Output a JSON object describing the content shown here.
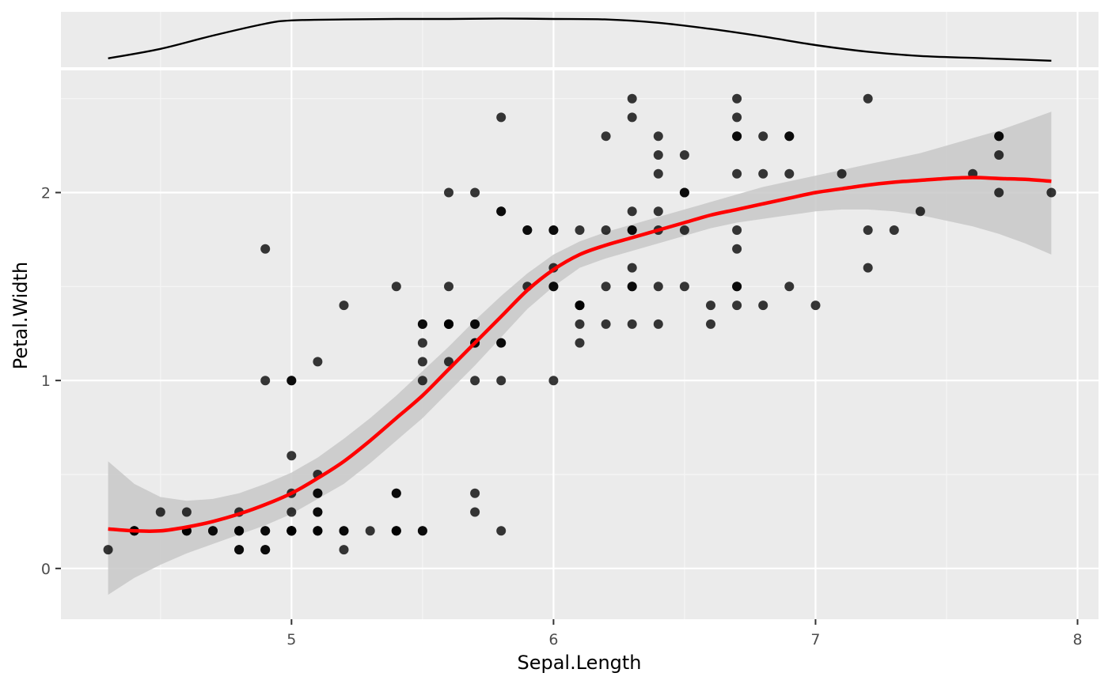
{
  "chart_data": {
    "type": "scatter",
    "title": "",
    "xlabel": "Sepal.Length",
    "ylabel": "Petal.Width",
    "xlim": [
      4.12,
      8.08
    ],
    "ylim": [
      -0.27,
      2.65
    ],
    "x_ticks": [
      5,
      6,
      7,
      8
    ],
    "x_tick_labels": [
      "5",
      "6",
      "7",
      "8"
    ],
    "y_ticks": [
      0,
      1,
      2
    ],
    "y_tick_labels": [
      "0",
      "1",
      "2"
    ],
    "grid": true,
    "legend": "none",
    "colors": {
      "panel_background": "#ebebeb",
      "grid_major": "#ffffff",
      "grid_minor": "#f5f5f5",
      "points": "#000000",
      "smooth_line": "#ff0000",
      "confidence_band": "#c8c8c8",
      "density_line": "#000000"
    },
    "points": [
      [
        4.3,
        0.1
      ],
      [
        4.4,
        0.2
      ],
      [
        4.4,
        0.2
      ],
      [
        4.4,
        0.2
      ],
      [
        4.5,
        0.3
      ],
      [
        4.6,
        0.2
      ],
      [
        4.6,
        0.3
      ],
      [
        4.6,
        0.2
      ],
      [
        4.6,
        0.2
      ],
      [
        4.7,
        0.2
      ],
      [
        4.7,
        0.2
      ],
      [
        4.8,
        0.2
      ],
      [
        4.8,
        0.1
      ],
      [
        4.8,
        0.3
      ],
      [
        4.8,
        0.2
      ],
      [
        4.8,
        0.2
      ],
      [
        4.8,
        0.1
      ],
      [
        4.9,
        0.1
      ],
      [
        4.9,
        0.2
      ],
      [
        4.9,
        0.1
      ],
      [
        4.9,
        0.2
      ],
      [
        4.9,
        1.0
      ],
      [
        4.9,
        1.7
      ],
      [
        5.0,
        0.2
      ],
      [
        5.0,
        0.2
      ],
      [
        5.0,
        0.4
      ],
      [
        5.0,
        0.2
      ],
      [
        5.0,
        0.2
      ],
      [
        5.0,
        0.6
      ],
      [
        5.0,
        0.3
      ],
      [
        5.0,
        0.2
      ],
      [
        5.0,
        1.0
      ],
      [
        5.0,
        1.0
      ],
      [
        5.0,
        0.2
      ],
      [
        5.1,
        0.2
      ],
      [
        5.1,
        0.4
      ],
      [
        5.1,
        0.3
      ],
      [
        5.1,
        0.3
      ],
      [
        5.1,
        0.2
      ],
      [
        5.1,
        0.4
      ],
      [
        5.1,
        0.5
      ],
      [
        5.1,
        0.2
      ],
      [
        5.1,
        1.1
      ],
      [
        5.2,
        0.2
      ],
      [
        5.2,
        0.1
      ],
      [
        5.2,
        0.2
      ],
      [
        5.2,
        1.4
      ],
      [
        5.3,
        0.2
      ],
      [
        5.4,
        0.2
      ],
      [
        5.4,
        0.4
      ],
      [
        5.4,
        0.2
      ],
      [
        5.4,
        0.4
      ],
      [
        5.4,
        0.2
      ],
      [
        5.4,
        1.5
      ],
      [
        5.5,
        0.2
      ],
      [
        5.5,
        0.2
      ],
      [
        5.5,
        1.3
      ],
      [
        5.5,
        1.1
      ],
      [
        5.5,
        1.0
      ],
      [
        5.5,
        1.2
      ],
      [
        5.5,
        1.3
      ],
      [
        5.6,
        1.3
      ],
      [
        5.6,
        1.5
      ],
      [
        5.6,
        1.1
      ],
      [
        5.6,
        1.3
      ],
      [
        5.6,
        1.3
      ],
      [
        5.6,
        2.0
      ],
      [
        5.7,
        0.4
      ],
      [
        5.7,
        0.3
      ],
      [
        5.7,
        1.3
      ],
      [
        5.7,
        1.0
      ],
      [
        5.7,
        1.2
      ],
      [
        5.7,
        1.2
      ],
      [
        5.7,
        1.3
      ],
      [
        5.7,
        2.0
      ],
      [
        5.8,
        0.2
      ],
      [
        5.8,
        1.0
      ],
      [
        5.8,
        1.2
      ],
      [
        5.8,
        1.2
      ],
      [
        5.8,
        1.9
      ],
      [
        5.8,
        2.4
      ],
      [
        5.8,
        1.9
      ],
      [
        5.9,
        1.5
      ],
      [
        5.9,
        1.8
      ],
      [
        5.9,
        1.8
      ],
      [
        6.0,
        1.0
      ],
      [
        6.0,
        1.6
      ],
      [
        6.0,
        1.5
      ],
      [
        6.0,
        1.8
      ],
      [
        6.0,
        1.5
      ],
      [
        6.0,
        1.8
      ],
      [
        6.1,
        1.4
      ],
      [
        6.1,
        1.2
      ],
      [
        6.1,
        1.4
      ],
      [
        6.1,
        1.3
      ],
      [
        6.1,
        1.8
      ],
      [
        6.1,
        1.4
      ],
      [
        6.2,
        1.3
      ],
      [
        6.2,
        1.5
      ],
      [
        6.2,
        1.8
      ],
      [
        6.2,
        2.3
      ],
      [
        6.3,
        1.6
      ],
      [
        6.3,
        1.5
      ],
      [
        6.3,
        1.3
      ],
      [
        6.3,
        1.9
      ],
      [
        6.3,
        1.8
      ],
      [
        6.3,
        1.8
      ],
      [
        6.3,
        2.5
      ],
      [
        6.3,
        2.4
      ],
      [
        6.3,
        1.5
      ],
      [
        6.4,
        1.5
      ],
      [
        6.4,
        1.3
      ],
      [
        6.4,
        1.9
      ],
      [
        6.4,
        1.8
      ],
      [
        6.4,
        2.1
      ],
      [
        6.4,
        2.2
      ],
      [
        6.4,
        2.3
      ],
      [
        6.5,
        1.5
      ],
      [
        6.5,
        2.0
      ],
      [
        6.5,
        1.8
      ],
      [
        6.5,
        2.2
      ],
      [
        6.5,
        2.0
      ],
      [
        6.6,
        1.3
      ],
      [
        6.6,
        1.4
      ],
      [
        6.7,
        1.4
      ],
      [
        6.7,
        1.5
      ],
      [
        6.7,
        1.7
      ],
      [
        6.7,
        1.5
      ],
      [
        6.7,
        2.5
      ],
      [
        6.7,
        1.8
      ],
      [
        6.7,
        2.1
      ],
      [
        6.7,
        2.4
      ],
      [
        6.7,
        2.3
      ],
      [
        6.7,
        2.3
      ],
      [
        6.8,
        1.4
      ],
      [
        6.8,
        2.1
      ],
      [
        6.8,
        2.3
      ],
      [
        6.9,
        1.5
      ],
      [
        6.9,
        2.3
      ],
      [
        6.9,
        2.1
      ],
      [
        6.9,
        2.3
      ],
      [
        7.0,
        1.4
      ],
      [
        7.1,
        2.1
      ],
      [
        7.2,
        1.8
      ],
      [
        7.2,
        1.6
      ],
      [
        7.2,
        2.5
      ],
      [
        7.3,
        1.8
      ],
      [
        7.4,
        1.9
      ],
      [
        7.6,
        2.1
      ],
      [
        7.7,
        2.2
      ],
      [
        7.7,
        2.3
      ],
      [
        7.7,
        2.0
      ],
      [
        7.7,
        2.3
      ],
      [
        7.9,
        2.0
      ]
    ],
    "smooth_fit": {
      "x": [
        4.3,
        4.4,
        4.5,
        4.6,
        4.7,
        4.8,
        4.9,
        5.0,
        5.1,
        5.2,
        5.3,
        5.4,
        5.5,
        5.6,
        5.7,
        5.8,
        5.9,
        6.0,
        6.1,
        6.2,
        6.3,
        6.4,
        6.5,
        6.6,
        6.7,
        6.8,
        6.9,
        7.0,
        7.1,
        7.2,
        7.3,
        7.4,
        7.5,
        7.6,
        7.7,
        7.8,
        7.9
      ],
      "y": [
        0.21,
        0.2,
        0.2,
        0.22,
        0.25,
        0.29,
        0.34,
        0.4,
        0.48,
        0.57,
        0.68,
        0.8,
        0.92,
        1.06,
        1.2,
        1.34,
        1.48,
        1.59,
        1.67,
        1.72,
        1.76,
        1.8,
        1.84,
        1.88,
        1.91,
        1.94,
        1.97,
        2.0,
        2.02,
        2.04,
        2.055,
        2.065,
        2.075,
        2.08,
        2.075,
        2.07,
        2.06
      ],
      "upper": [
        0.57,
        0.45,
        0.38,
        0.36,
        0.37,
        0.4,
        0.45,
        0.51,
        0.59,
        0.69,
        0.8,
        0.92,
        1.05,
        1.18,
        1.32,
        1.45,
        1.57,
        1.67,
        1.74,
        1.79,
        1.83,
        1.87,
        1.91,
        1.95,
        1.99,
        2.03,
        2.06,
        2.09,
        2.12,
        2.15,
        2.18,
        2.21,
        2.25,
        2.29,
        2.33,
        2.38,
        2.43
      ],
      "lower": [
        -0.14,
        -0.05,
        0.02,
        0.08,
        0.13,
        0.18,
        0.23,
        0.29,
        0.37,
        0.45,
        0.56,
        0.68,
        0.8,
        0.94,
        1.08,
        1.23,
        1.38,
        1.5,
        1.6,
        1.65,
        1.69,
        1.73,
        1.77,
        1.81,
        1.84,
        1.86,
        1.88,
        1.9,
        1.91,
        1.91,
        1.9,
        1.88,
        1.85,
        1.82,
        1.78,
        1.73,
        1.67
      ]
    },
    "density_top": {
      "x": [
        4.3,
        4.5,
        4.7,
        4.9,
        5.0,
        5.2,
        5.4,
        5.6,
        5.8,
        6.0,
        6.2,
        6.4,
        6.6,
        6.8,
        7.0,
        7.2,
        7.4,
        7.6,
        7.8,
        7.9
      ],
      "y": [
        0.12,
        0.32,
        0.6,
        0.85,
        0.92,
        0.94,
        0.95,
        0.95,
        0.96,
        0.95,
        0.94,
        0.87,
        0.74,
        0.58,
        0.4,
        0.26,
        0.17,
        0.13,
        0.09,
        0.07
      ]
    }
  }
}
